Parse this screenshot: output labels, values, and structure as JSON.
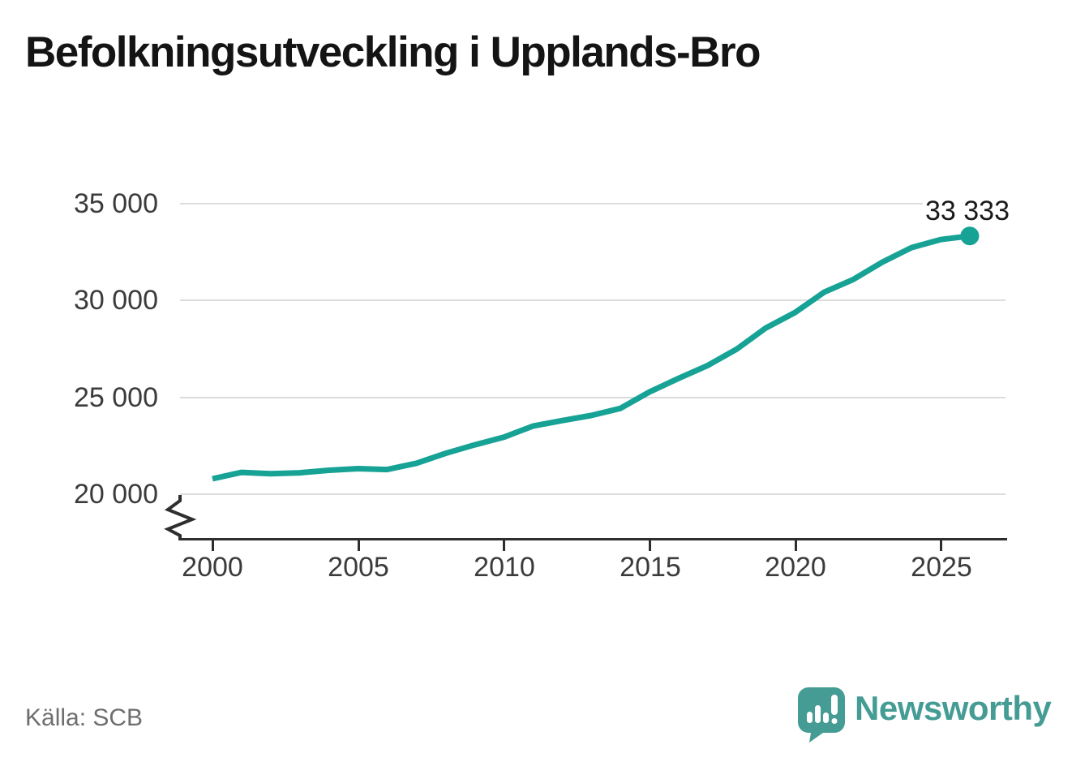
{
  "title": "Befolkningsutveckling i Upplands-Bro",
  "source": "Källa: SCB",
  "logo": {
    "text": "Newsworthy",
    "icon": "speech-bubble-bar-chart-icon"
  },
  "colors": {
    "line": "#17a296",
    "marker": "#17a296",
    "logo": "#459c95",
    "axis": "#2e2e2e",
    "grid": "#dcdcdc",
    "tick_text": "#3b3b3b",
    "title_text": "#141414",
    "source_text": "#6e6e6e",
    "value_label_text": "#1a1a1a"
  },
  "chart_data": {
    "type": "line",
    "title": "Befolkningsutveckling i Upplands-Bro",
    "x": [
      2000,
      2001,
      2002,
      2003,
      2004,
      2005,
      2006,
      2007,
      2008,
      2009,
      2010,
      2011,
      2012,
      2013,
      2014,
      2015,
      2016,
      2017,
      2018,
      2019,
      2020,
      2021,
      2022,
      2023,
      2024,
      2025,
      2026
    ],
    "values": [
      20814,
      21146,
      21080,
      21127,
      21254,
      21338,
      21292,
      21616,
      22125,
      22566,
      22959,
      23532,
      23815,
      24079,
      24442,
      25287,
      25993,
      26657,
      27503,
      28595,
      29390,
      30434,
      31093,
      31987,
      32735,
      33150,
      33333
    ],
    "series_name": "Befolkning",
    "last_point_label": "33 333",
    "last_point_value": 33333,
    "x_ticks": [
      2000,
      2005,
      2010,
      2015,
      2020,
      2025
    ],
    "x_tick_labels": [
      "2000",
      "2005",
      "2010",
      "2015",
      "2020",
      "2025"
    ],
    "y_ticks": [
      35000,
      30000,
      25000,
      20000
    ],
    "y_tick_labels": [
      "35 000",
      "30 000",
      "25 000",
      "20 000"
    ],
    "ylim": [
      20000,
      35000
    ],
    "xlim": [
      1999,
      2027
    ],
    "y_axis_break": true,
    "grid": "horizontal",
    "legend": "none"
  }
}
